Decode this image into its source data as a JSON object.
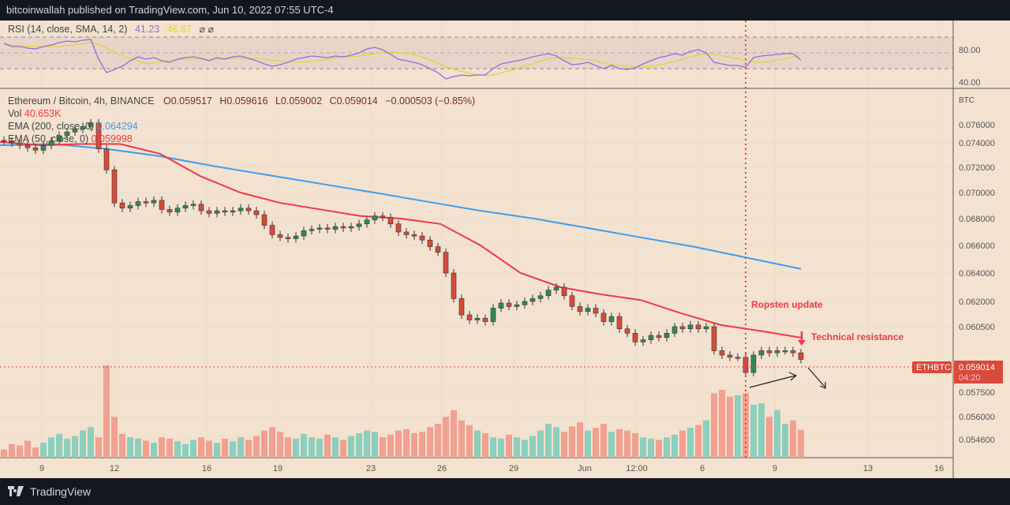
{
  "header": {
    "publisher_line": "bitcoinwallah published on TradingView.com, Jun 10, 2022 07:55 UTC-4"
  },
  "footer": {
    "brand": "TradingView"
  },
  "rsi_legend": {
    "label": "RSI (14, close, SMA, 14, 2)",
    "rsi_value": "41.23",
    "sma_value": "46.67",
    "icons": "⌀ ⌀"
  },
  "rsi_axis": [
    "80.00",
    "40.00"
  ],
  "main_legend": {
    "symbol": "Ethereum / Bitcoin, 4h, BINANCE",
    "open": "O0.059517",
    "high": "H0.059616",
    "low": "L0.059002",
    "close": "C0.059014",
    "change": "−0.000503 (−0.85%)",
    "vol_label": "Vol",
    "vol_value": "40.653K",
    "ema200_label": "EMA (200, close, 0)",
    "ema200_value": "0.064294",
    "ema50_label": "EMA (50, close, 0)",
    "ema50_value": "0.059998"
  },
  "colors": {
    "background": "#f3e2cf",
    "up": "#2f8a5a",
    "down": "#d84a3a",
    "vol_up": "#8ccfbd",
    "vol_down": "#f2a08f",
    "ema200": "#3d9cf0",
    "ema50": "#f0384a",
    "rsi": "#8d6fdc",
    "rsi_sma": "#e4d23a",
    "annotation": "#f0384a"
  },
  "price_axis": {
    "unit": "BTC",
    "ticks": [
      "0.076000",
      "0.074000",
      "0.072000",
      "0.070000",
      "0.068000",
      "0.066000",
      "0.064000",
      "0.062000",
      "0.060500",
      "0.057500",
      "0.056000",
      "0.054600"
    ],
    "current_symbol": "ETHBTC",
    "current_price": "0.059014",
    "countdown": "04:20"
  },
  "time_axis": [
    "9",
    "12",
    "16",
    "19",
    "23",
    "26",
    "29",
    "Jun",
    "12:00",
    "6",
    "9",
    "13",
    "16"
  ],
  "annotations": {
    "ropsten": "Ropsten update",
    "resistance": "Technical resistance"
  },
  "chart_data": {
    "type": "candlestick",
    "yscale": "log",
    "closes": [
      0.0742,
      0.074,
      0.0738,
      0.0736,
      0.0734,
      0.0738,
      0.0742,
      0.0748,
      0.0752,
      0.0755,
      0.0758,
      0.0762,
      0.0735,
      0.0718,
      0.0692,
      0.0688,
      0.069,
      0.0693,
      0.0692,
      0.0694,
      0.0687,
      0.0685,
      0.0688,
      0.069,
      0.0691,
      0.0686,
      0.0684,
      0.0686,
      0.0685,
      0.0686,
      0.0688,
      0.0686,
      0.0683,
      0.0675,
      0.0668,
      0.0666,
      0.0665,
      0.0667,
      0.0671,
      0.0672,
      0.0673,
      0.0672,
      0.0674,
      0.0673,
      0.0674,
      0.0676,
      0.0679,
      0.0682,
      0.0681,
      0.0676,
      0.067,
      0.0668,
      0.0667,
      0.0664,
      0.0659,
      0.0655,
      0.064,
      0.0622,
      0.0612,
      0.0609,
      0.061,
      0.0608,
      0.0616,
      0.0619,
      0.0617,
      0.0618,
      0.062,
      0.0622,
      0.0624,
      0.0628,
      0.063,
      0.0624,
      0.0617,
      0.0614,
      0.0616,
      0.0613,
      0.0608,
      0.0611,
      0.0604,
      0.0602,
      0.0598,
      0.0599,
      0.0601,
      0.06,
      0.0602,
      0.0605,
      0.0604,
      0.0606,
      0.0604,
      0.0605,
      0.0594,
      0.0592,
      0.0591,
      0.0591,
      0.0584,
      0.0592,
      0.0594,
      0.0593,
      0.0594,
      0.0594,
      0.0593,
      0.059
    ],
    "volumes_k": [
      12,
      20,
      18,
      25,
      15,
      22,
      30,
      35,
      28,
      32,
      40,
      45,
      30,
      136,
      60,
      35,
      30,
      28,
      25,
      22,
      30,
      28,
      24,
      20,
      26,
      30,
      25,
      22,
      28,
      24,
      30,
      26,
      32,
      40,
      45,
      38,
      30,
      28,
      35,
      30,
      28,
      34,
      30,
      26,
      32,
      36,
      40,
      38,
      30,
      34,
      40,
      42,
      36,
      38,
      45,
      50,
      60,
      70,
      55,
      48,
      40,
      36,
      30,
      28,
      34,
      30,
      26,
      32,
      40,
      50,
      45,
      38,
      46,
      52,
      40,
      44,
      50,
      38,
      42,
      40,
      36,
      30,
      28,
      26,
      30,
      34,
      40,
      44,
      48,
      55,
      95,
      100,
      90,
      92,
      95,
      78,
      80,
      60,
      70,
      50,
      55,
      41
    ],
    "rsi": [
      62,
      58,
      58,
      56,
      55,
      58,
      60,
      63,
      65,
      64,
      66,
      67,
      42,
      25,
      29,
      33,
      40,
      45,
      42,
      44,
      40,
      38,
      42,
      44,
      45,
      43,
      40,
      44,
      42,
      45,
      46,
      43,
      40,
      36,
      33,
      35,
      38,
      42,
      44,
      46,
      45,
      44,
      46,
      45,
      47,
      50,
      55,
      57,
      54,
      48,
      42,
      40,
      38,
      35,
      30,
      25,
      17,
      20,
      22,
      21,
      22,
      22,
      30,
      36,
      38,
      40,
      42,
      45,
      47,
      49,
      46,
      40,
      35,
      36,
      38,
      34,
      30,
      34,
      30,
      29,
      31,
      36,
      40,
      44,
      46,
      49,
      47,
      52,
      54,
      50,
      38,
      36,
      34,
      34,
      32,
      44,
      46,
      47,
      48,
      49,
      49,
      41
    ],
    "ema200": [
      0.0738,
      0.0739,
      0.0735,
      0.0729,
      0.0721,
      0.0714,
      0.0707,
      0.07,
      0.0693,
      0.0686,
      0.068,
      0.0673,
      0.0666,
      0.0659,
      0.0651,
      0.0643
    ],
    "ema50": [
      0.0741,
      0.0738,
      0.0739,
      0.0739,
      0.0731,
      0.0713,
      0.07,
      0.0692,
      0.0687,
      0.0682,
      0.068,
      0.0676,
      0.066,
      0.064,
      0.063,
      0.0625,
      0.0621,
      0.0613,
      0.0606,
      0.0603,
      0.06
    ]
  }
}
